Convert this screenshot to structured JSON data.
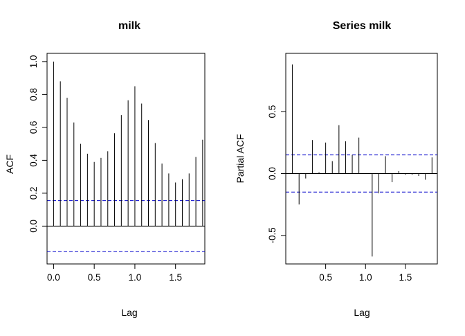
{
  "chart_data": [
    {
      "type": "acf",
      "title": "milk",
      "xlabel": "Lag",
      "ylabel": "ACF",
      "xlim": [
        -0.08,
        1.86
      ],
      "ylim": [
        -0.23,
        1.05
      ],
      "x_ticks": [
        0.0,
        0.5,
        1.0,
        1.5
      ],
      "x_tick_labels": [
        "0.0",
        "0.5",
        "1.0",
        "1.5"
      ],
      "y_ticks": [
        0.0,
        0.2,
        0.4,
        0.6,
        0.8,
        1.0
      ],
      "y_tick_labels": [
        "0.0",
        "0.2",
        "0.4",
        "0.6",
        "0.8",
        "1.0"
      ],
      "ci": 0.155,
      "ci_color": "#0000CC",
      "x": [
        0.0,
        0.0833,
        0.1667,
        0.25,
        0.3333,
        0.4167,
        0.5,
        0.5833,
        0.6667,
        0.75,
        0.8333,
        0.9167,
        1.0,
        1.0833,
        1.1667,
        1.25,
        1.3333,
        1.4167,
        1.5,
        1.5833,
        1.6667,
        1.75,
        1.8333
      ],
      "values": [
        1.0,
        0.88,
        0.78,
        0.63,
        0.5,
        0.44,
        0.39,
        0.415,
        0.455,
        0.565,
        0.675,
        0.765,
        0.85,
        0.745,
        0.645,
        0.505,
        0.38,
        0.32,
        0.265,
        0.285,
        0.32,
        0.42,
        0.525
      ]
    },
    {
      "type": "pacf",
      "title": "Series  milk",
      "xlabel": "Lag",
      "ylabel": "Partial ACF",
      "xlim": [
        0.0,
        1.9
      ],
      "ylim": [
        -0.73,
        0.97
      ],
      "x_ticks": [
        0.5,
        1.0,
        1.5
      ],
      "x_tick_labels": [
        "0.5",
        "1.0",
        "1.5"
      ],
      "y_ticks": [
        -0.5,
        0.0,
        0.5
      ],
      "y_tick_labels": [
        "-0.5",
        "0.0",
        "0.5"
      ],
      "ci": 0.15,
      "ci_color": "#0000CC",
      "x": [
        0.0833,
        0.1667,
        0.25,
        0.3333,
        0.4167,
        0.5,
        0.5833,
        0.6667,
        0.75,
        0.8333,
        0.9167,
        1.0,
        1.0833,
        1.1667,
        1.25,
        1.3333,
        1.4167,
        1.5,
        1.5833,
        1.6667,
        1.75,
        1.8333
      ],
      "values": [
        0.88,
        -0.25,
        -0.04,
        0.27,
        0.01,
        0.25,
        0.1,
        0.39,
        0.26,
        0.15,
        0.29,
        0.0,
        -0.67,
        -0.16,
        0.14,
        -0.07,
        0.02,
        -0.01,
        -0.01,
        -0.02,
        -0.05,
        0.13
      ]
    }
  ]
}
